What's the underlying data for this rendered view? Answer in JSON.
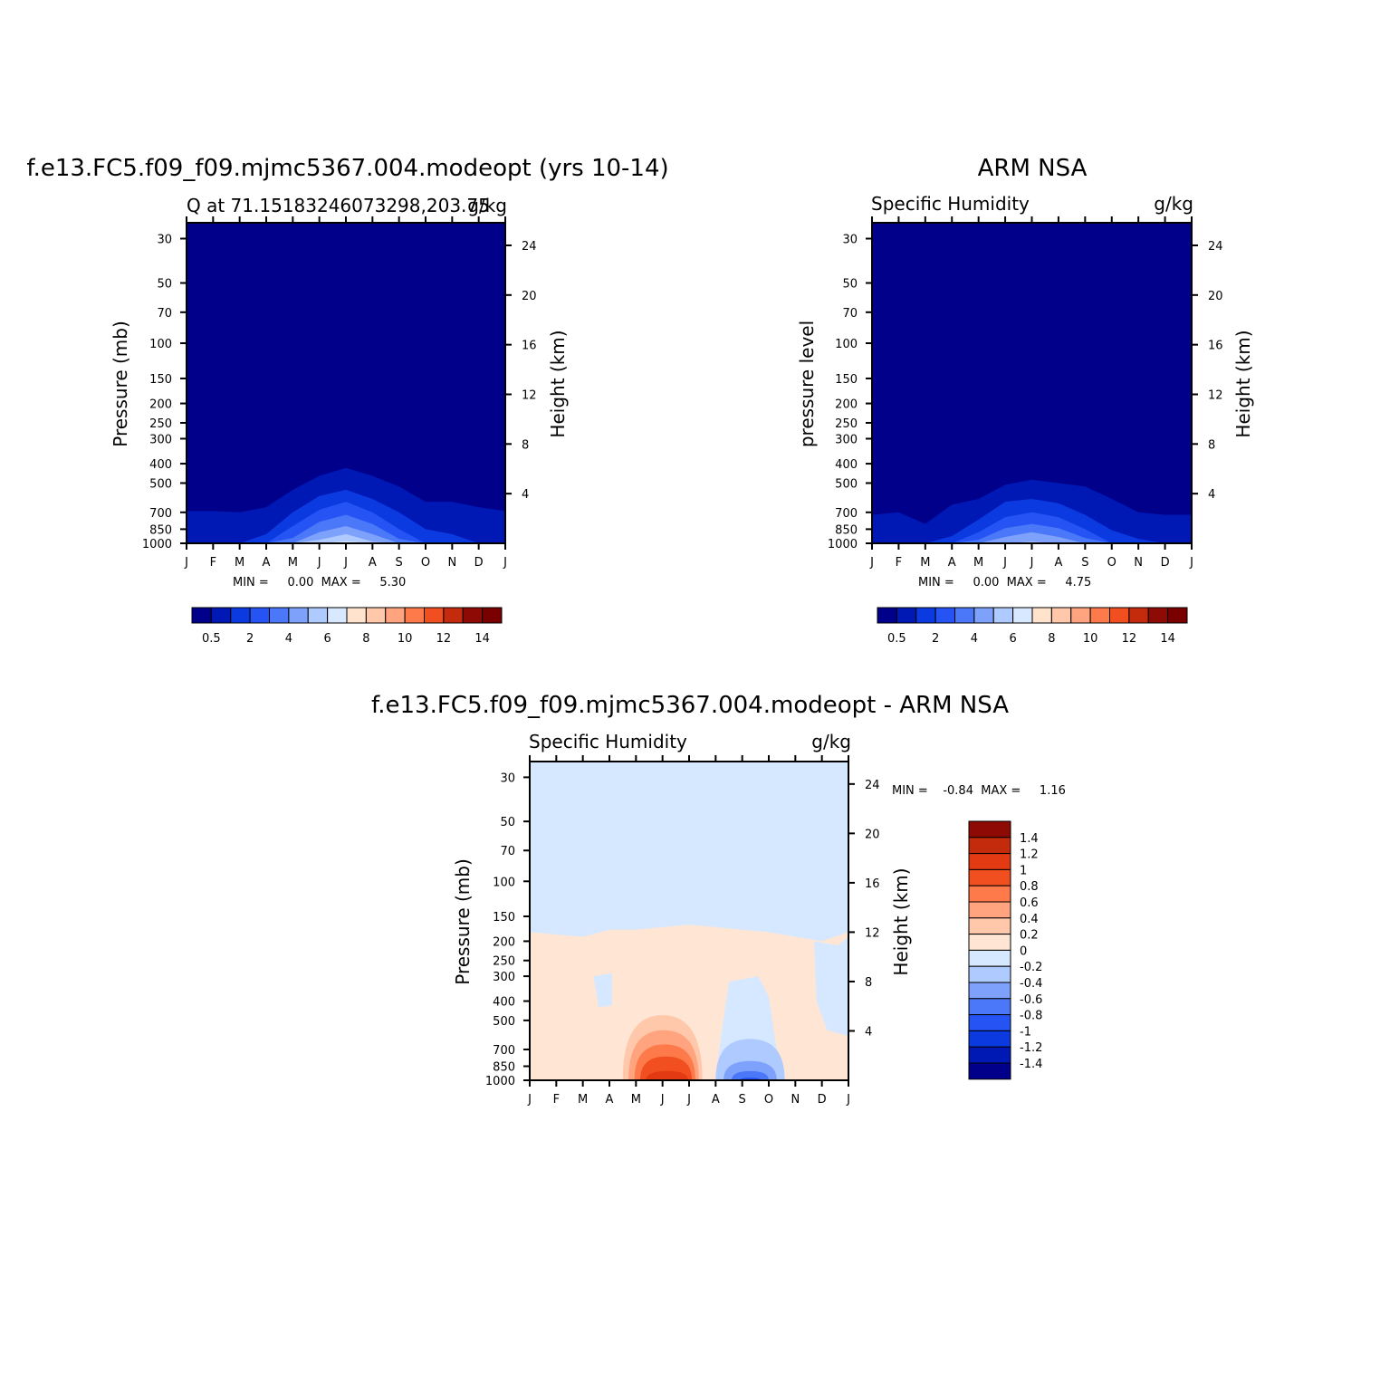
{
  "chart_data": [
    {
      "type": "heatmap",
      "title": "f.e13.FC5.f09_f09.mjmc5367.004.modeopt (yrs 10-14)",
      "subtitle_left": "Q at 71.15183246073298,203.75",
      "subtitle_right": "g/kg",
      "ylabel": "Pressure (mb)",
      "ylabel_right": "Height (km)",
      "x_ticks": [
        "J",
        "F",
        "M",
        "A",
        "M",
        "J",
        "J",
        "A",
        "S",
        "O",
        "N",
        "D",
        "J"
      ],
      "y_ticks": [
        "30",
        "50",
        "70",
        "100",
        "150",
        "200",
        "250",
        "300",
        "400",
        "500",
        "700",
        "850",
        "1000"
      ],
      "y_ticks_right": [
        "24",
        "20",
        "16",
        "12",
        "8",
        "4"
      ],
      "ylim": [
        1000,
        25
      ],
      "stats_label": "MIN =     0.00  MAX =     5.30",
      "min": 0.0,
      "max": 5.3,
      "colorbar_labels": [
        "0.5",
        "2",
        "4",
        "6",
        "8",
        "10",
        "12",
        "14"
      ],
      "contour_profile": {
        "months": [
          0,
          1,
          2,
          3,
          4,
          5,
          6,
          7,
          8,
          9,
          10,
          11,
          12
        ],
        "levels": [
          0.5,
          1,
          1.5,
          2,
          3,
          4,
          5
        ],
        "top_pressure_mb": [
          [
            690,
            690,
            700,
            660,
            540,
            460,
            420,
            460,
            520,
            620,
            620,
            660,
            690
          ],
          [
            1000,
            1000,
            1000,
            900,
            700,
            580,
            540,
            600,
            700,
            850,
            900,
            1000,
            1000
          ],
          [
            1000,
            1000,
            1000,
            1000,
            820,
            680,
            620,
            700,
            850,
            1000,
            1000,
            1000,
            1000
          ],
          [
            1000,
            1000,
            1000,
            1000,
            940,
            780,
            720,
            800,
            950,
            1000,
            1000,
            1000,
            1000
          ],
          [
            1000,
            1000,
            1000,
            1000,
            1000,
            880,
            820,
            900,
            1000,
            1000,
            1000,
            1000,
            1000
          ],
          [
            1000,
            1000,
            1000,
            1000,
            1000,
            960,
            900,
            980,
            1000,
            1000,
            1000,
            1000,
            1000
          ],
          [
            1000,
            1000,
            1000,
            1000,
            1000,
            1000,
            975,
            1000,
            1000,
            1000,
            1000,
            1000,
            1000
          ]
        ]
      }
    },
    {
      "type": "heatmap",
      "title": "ARM NSA",
      "subtitle_left": "Specific Humidity",
      "subtitle_right": "g/kg",
      "ylabel": "pressure level",
      "ylabel_right": "Height (km)",
      "x_ticks": [
        "J",
        "F",
        "M",
        "A",
        "M",
        "J",
        "J",
        "A",
        "S",
        "O",
        "N",
        "D",
        "J"
      ],
      "y_ticks": [
        "30",
        "50",
        "70",
        "100",
        "150",
        "200",
        "250",
        "300",
        "400",
        "500",
        "700",
        "850",
        "1000"
      ],
      "y_ticks_right": [
        "24",
        "20",
        "16",
        "12",
        "8",
        "4"
      ],
      "ylim": [
        1000,
        25
      ],
      "stats_label": "MIN =     0.00  MAX =     4.75",
      "min": 0.0,
      "max": 4.75,
      "colorbar_labels": [
        "0.5",
        "2",
        "4",
        "6",
        "8",
        "10",
        "12",
        "14"
      ],
      "contour_profile": {
        "months": [
          0,
          1,
          2,
          3,
          4,
          5,
          6,
          7,
          8,
          9,
          10,
          11,
          12
        ],
        "levels": [
          0.5,
          1,
          1.5,
          2,
          3,
          4
        ],
        "top_pressure_mb": [
          [
            720,
            700,
            800,
            640,
            600,
            510,
            480,
            500,
            520,
            600,
            700,
            720,
            720
          ],
          [
            1000,
            1000,
            1000,
            920,
            760,
            620,
            600,
            630,
            720,
            860,
            950,
            1000,
            1000
          ],
          [
            1000,
            1000,
            1000,
            1000,
            880,
            740,
            700,
            740,
            850,
            1000,
            1000,
            1000,
            1000
          ],
          [
            1000,
            1000,
            1000,
            1000,
            960,
            840,
            800,
            840,
            940,
            1000,
            1000,
            1000,
            1000
          ],
          [
            1000,
            1000,
            1000,
            1000,
            1000,
            930,
            880,
            930,
            1000,
            1000,
            1000,
            1000,
            1000
          ],
          [
            1000,
            1000,
            1000,
            1000,
            1000,
            1000,
            980,
            1000,
            1000,
            1000,
            1000,
            1000,
            1000
          ]
        ]
      }
    },
    {
      "type": "heatmap",
      "title": "f.e13.FC5.f09_f09.mjmc5367.004.modeopt - ARM NSA",
      "subtitle_left": "Specific Humidity",
      "subtitle_right": "g/kg",
      "ylabel": "Pressure (mb)",
      "ylabel_right": "Height (km)",
      "x_ticks": [
        "J",
        "F",
        "M",
        "A",
        "M",
        "J",
        "J",
        "A",
        "S",
        "O",
        "N",
        "D",
        "J"
      ],
      "y_ticks": [
        "30",
        "50",
        "70",
        "100",
        "150",
        "200",
        "250",
        "300",
        "400",
        "500",
        "700",
        "850",
        "1000"
      ],
      "y_ticks_right": [
        "24",
        "20",
        "16",
        "12",
        "8",
        "4"
      ],
      "ylim": [
        1000,
        25
      ],
      "stats_label": "MIN =    -0.84  MAX =     1.16",
      "min": -0.84,
      "max": 1.16,
      "colorbar_labels": [
        "1.4",
        "1.2",
        "1",
        "0.8",
        "0.6",
        "0.4",
        "0.2",
        "0",
        "-0.2",
        "-0.4",
        "-0.6",
        "-0.8",
        "-1",
        "-1.2",
        "-1.4"
      ],
      "contours": {
        "months": [
          0,
          1,
          2,
          3,
          4,
          5,
          6,
          7,
          8,
          9,
          10,
          11,
          12
        ],
        "zero_line_pressure_mb": [
          180,
          185,
          190,
          175,
          175,
          170,
          165,
          170,
          175,
          180,
          190,
          200,
          180
        ],
        "positive_core": {
          "month_range": [
            3.5,
            6.5
          ],
          "levels": [
            0.2,
            0.4,
            0.6,
            0.8,
            1.0
          ],
          "top_pressure_mb": [
            470,
            560,
            660,
            760,
            900
          ]
        },
        "negative_core": {
          "month_range": [
            7.0,
            9.6
          ],
          "levels": [
            -0.2,
            -0.4,
            -0.6,
            -0.8
          ],
          "top_pressure_mb": [
            620,
            800,
            900,
            970
          ]
        }
      }
    }
  ]
}
